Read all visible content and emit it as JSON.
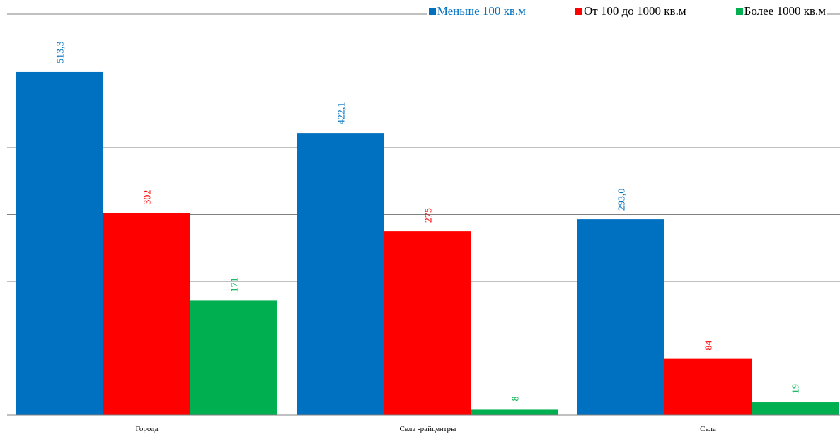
{
  "chart_data": {
    "type": "bar",
    "categories": [
      "Города",
      "Села -райцентры",
      "Села"
    ],
    "series": [
      {
        "name": "Меньше 100 кв.м",
        "values": [
          513.3,
          422.1,
          293.0
        ],
        "labels": [
          "513,3",
          "422,1",
          "293,0"
        ],
        "color": "#0070c0"
      },
      {
        "name": "От 100 до 1000 кв.м",
        "values": [
          302,
          275,
          84
        ],
        "labels": [
          "302",
          "275",
          "84"
        ],
        "color": "#ff0000"
      },
      {
        "name": "Более 1000 кв.м",
        "values": [
          171,
          8,
          19
        ],
        "labels": [
          "171",
          "8",
          "19"
        ],
        "color": "#00b050"
      }
    ],
    "ylim": [
      0,
      600
    ],
    "grid": true,
    "legend": "top-right",
    "title": "",
    "xlabel": "",
    "ylabel": ""
  }
}
